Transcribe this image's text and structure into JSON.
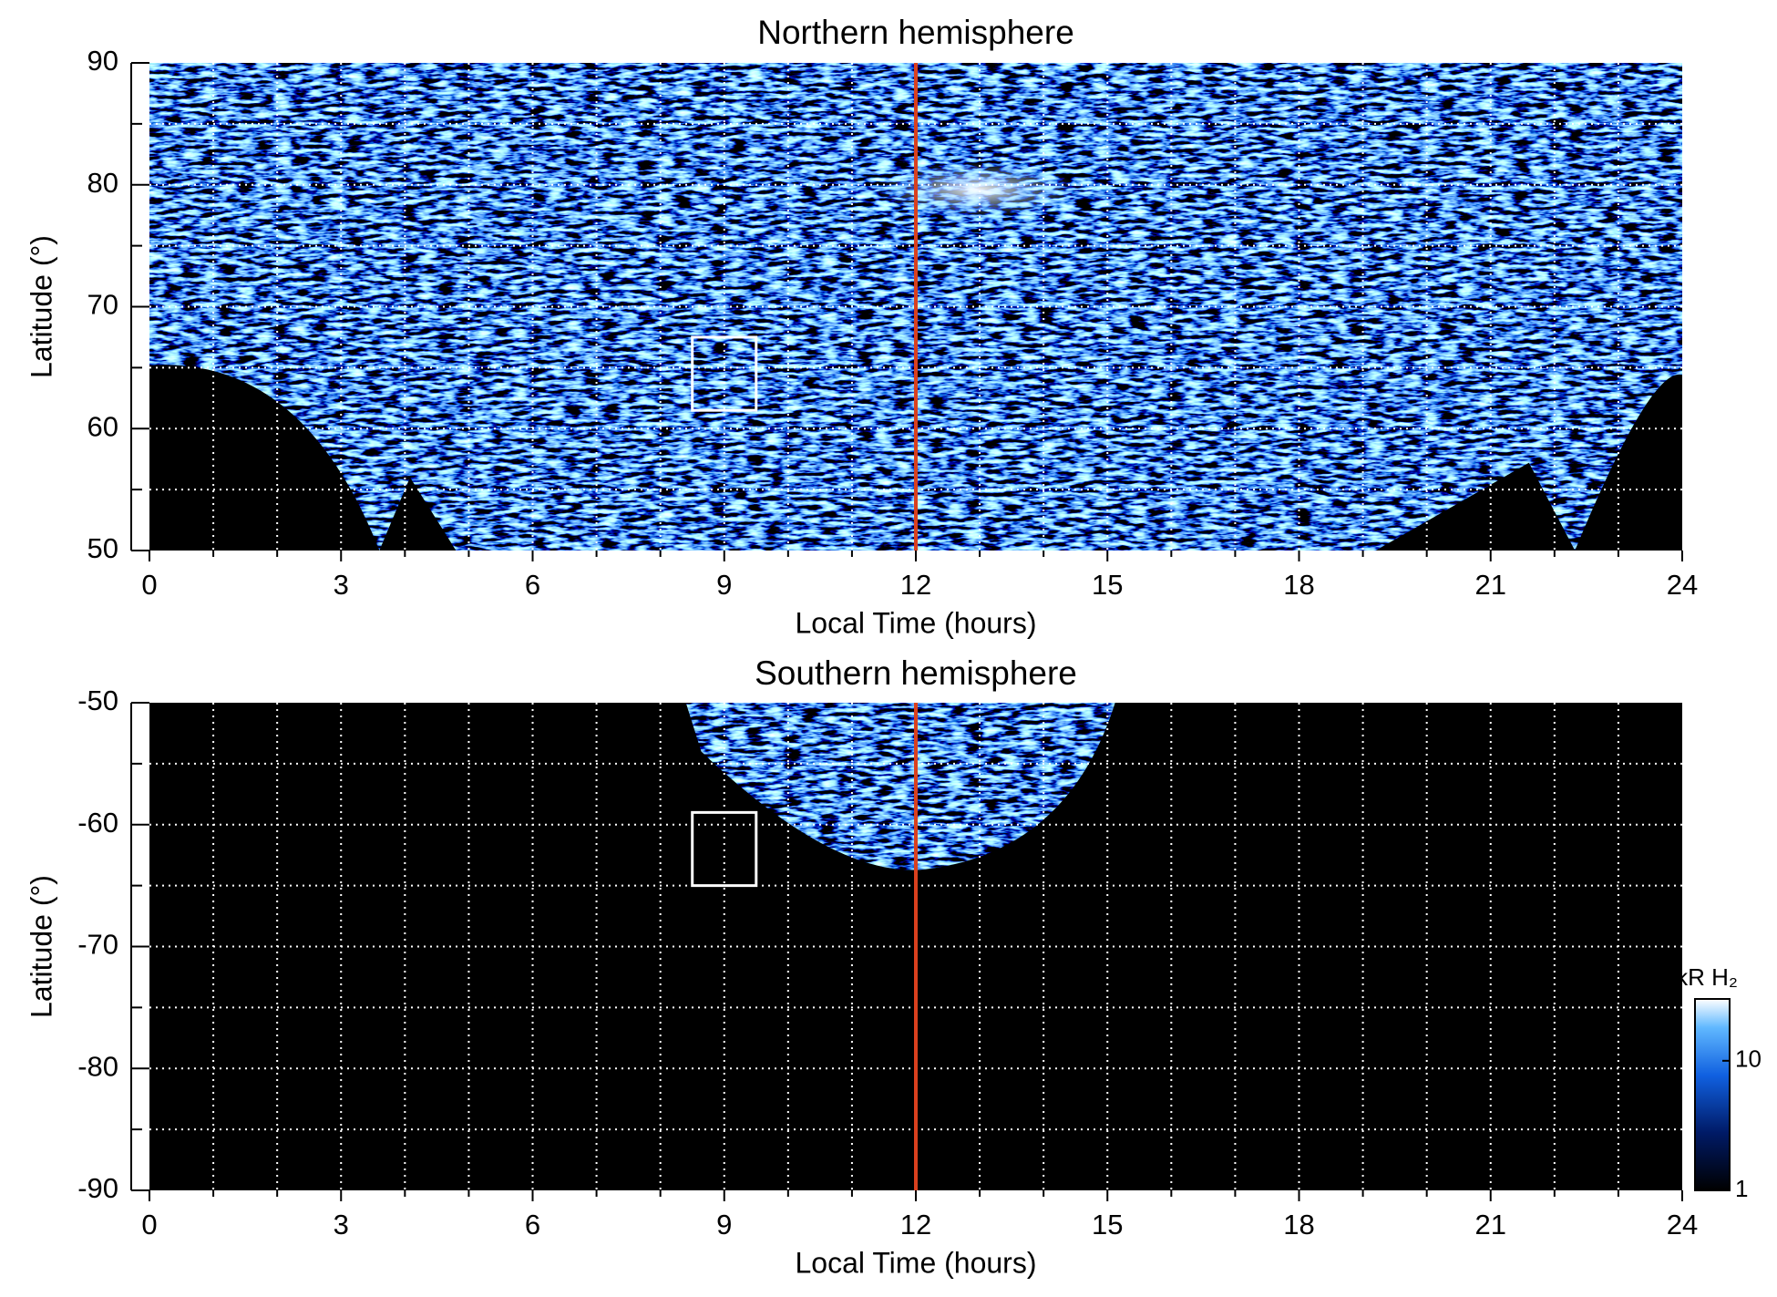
{
  "chart_data": [
    {
      "type": "heatmap",
      "title": "Northern hemisphere",
      "xlabel": "Local Time (hours)",
      "ylabel": "Latitude (°)",
      "xlim": [
        0,
        24
      ],
      "xticks": [
        0,
        3,
        6,
        9,
        12,
        15,
        18,
        21,
        24
      ],
      "xminor": [
        1,
        2,
        4,
        5,
        7,
        8,
        10,
        11,
        13,
        14,
        16,
        17,
        19,
        20,
        22,
        23
      ],
      "ylim": [
        50,
        90
      ],
      "yticks": [
        50,
        60,
        70,
        80,
        90
      ],
      "yminor": [
        55,
        65,
        75,
        85
      ],
      "grid": true,
      "reference_line": {
        "x": 12,
        "color": "#d9401e"
      },
      "box": {
        "x": [
          8.5,
          9.5
        ],
        "y": [
          61.5,
          67.5
        ],
        "color": "#ffffff"
      }
    },
    {
      "type": "heatmap",
      "title": "Southern hemisphere",
      "xlabel": "Local Time (hours)",
      "ylabel": "Latitude (°)",
      "xlim": [
        0,
        24
      ],
      "xticks": [
        0,
        3,
        6,
        9,
        12,
        15,
        18,
        21,
        24
      ],
      "xminor": [
        1,
        2,
        4,
        5,
        7,
        8,
        10,
        11,
        13,
        14,
        16,
        17,
        19,
        20,
        22,
        23
      ],
      "ylim": [
        -90,
        -50
      ],
      "yticks": [
        -90,
        -80,
        -70,
        -60,
        -50
      ],
      "yminor": [
        -85,
        -75,
        -65,
        -55
      ],
      "grid": true,
      "reference_line": {
        "x": 12,
        "color": "#d9401e"
      },
      "box": {
        "x": [
          8.5,
          9.5
        ],
        "y": [
          -65,
          -59
        ],
        "color": "#ffffff"
      },
      "colorbar": {
        "label": "kR H₂",
        "lim": [
          1,
          30
        ],
        "ticks": [
          1,
          10
        ],
        "log": true
      }
    }
  ]
}
